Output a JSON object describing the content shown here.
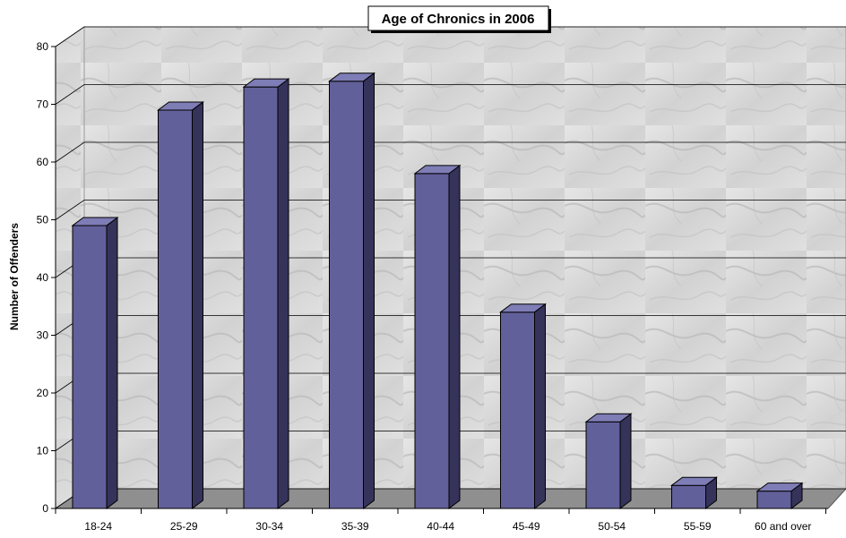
{
  "chart_data": {
    "type": "bar",
    "title": "Age of Chronics in 2006",
    "xlabel": "",
    "ylabel": "Number of Offenders",
    "categories": [
      "18-24",
      "25-29",
      "30-34",
      "35-39",
      "40-44",
      "45-49",
      "50-54",
      "55-59",
      "60 and over"
    ],
    "values": [
      49,
      69,
      73,
      74,
      58,
      34,
      15,
      4,
      3
    ],
    "ylim": [
      0,
      80
    ],
    "yticks": [
      0,
      10,
      20,
      30,
      40,
      50,
      60,
      70,
      80
    ],
    "grid": true,
    "legend": "none",
    "colors": {
      "bar_front": "#62609a",
      "bar_side": "#35335a",
      "bar_top": "#7f7db6",
      "floor": "#8f8f8f",
      "wall": "#d7d7d7"
    }
  }
}
